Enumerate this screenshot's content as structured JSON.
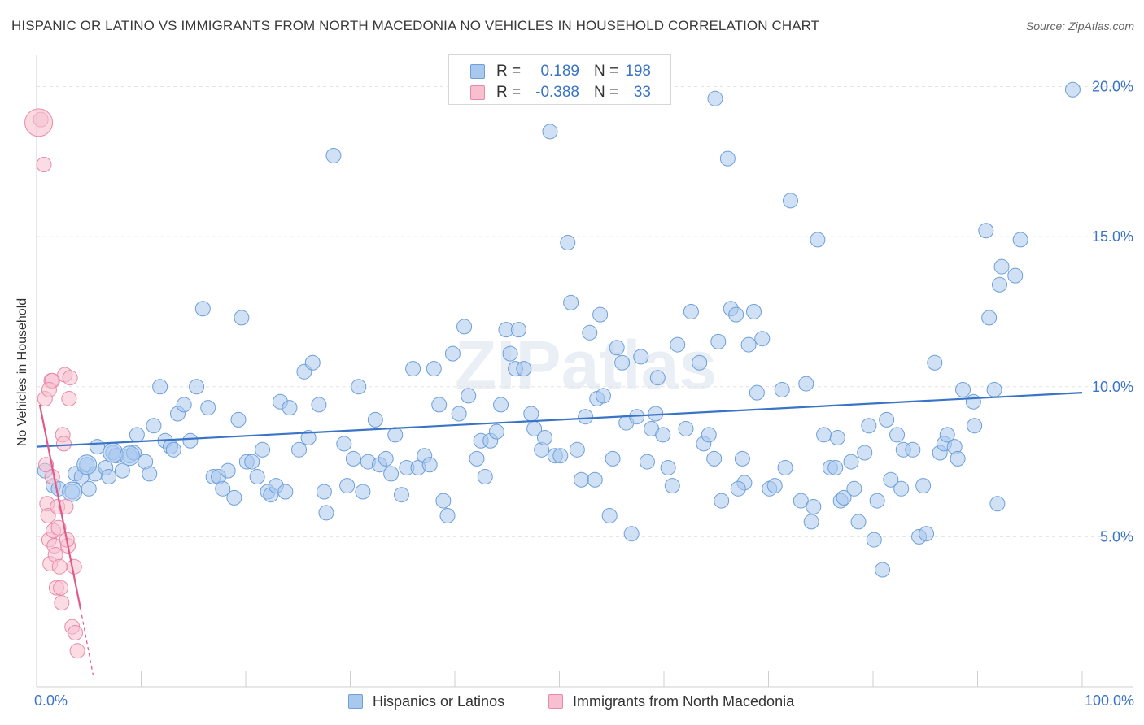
{
  "title": "HISPANIC OR LATINO VS IMMIGRANTS FROM NORTH MACEDONIA NO VEHICLES IN HOUSEHOLD CORRELATION CHART",
  "source": "Source: ZipAtlas.com",
  "watermark": "ZIPatlas",
  "legend_box": {
    "rows": [
      {
        "r_label": "R =",
        "r_value": "0.189",
        "n_label": "N =",
        "n_value": "198",
        "color": "#a9c8ee",
        "border": "#6e9fd8"
      },
      {
        "r_label": "R =",
        "r_value": "-0.388",
        "n_label": "N =",
        "n_value": "33",
        "color": "#f7bfcf",
        "border": "#e88aa7"
      }
    ]
  },
  "bottom_legend": [
    "Hispanics or Latinos",
    "Immigrants from North Macedonia"
  ],
  "chart_data": {
    "type": "scatter",
    "title": "HISPANIC OR LATINO VS IMMIGRANTS FROM NORTH MACEDONIA NO VEHICLES IN HOUSEHOLD CORRELATION CHART",
    "xlabel": "",
    "ylabel": "No Vehicles in Household",
    "xlim": [
      0,
      100
    ],
    "ylim": [
      0,
      20.8
    ],
    "x_tick_labels": [
      "0.0%",
      "100.0%"
    ],
    "y_ticks": [
      5,
      10,
      15,
      20
    ],
    "y_tick_labels": [
      "5.0%",
      "10.0%",
      "15.0%",
      "20.0%"
    ],
    "grid": true,
    "legend_position": "bottom",
    "series": [
      {
        "name": "Hispanics or Latinos",
        "color": "#a9c8ee",
        "stroke": "#6e9fd8",
        "line_color": "#3a74c6",
        "trend": {
          "x": [
            0,
            100
          ],
          "y": [
            8.0,
            9.8
          ]
        },
        "points": [
          [
            0.8,
            7.2
          ],
          [
            1.6,
            6.7
          ],
          [
            2.1,
            6.6
          ],
          [
            3.4,
            6.5
          ],
          [
            3.7,
            7.1
          ],
          [
            4.3,
            7.0
          ],
          [
            4.8,
            7.4
          ],
          [
            5.0,
            6.6
          ],
          [
            5.6,
            7.1
          ],
          [
            5.8,
            8.0
          ],
          [
            6.6,
            7.3
          ],
          [
            6.9,
            7.0
          ],
          [
            7.3,
            7.8
          ],
          [
            7.6,
            7.7
          ],
          [
            8.2,
            7.2
          ],
          [
            8.9,
            7.7
          ],
          [
            9.3,
            7.8
          ],
          [
            9.6,
            8.4
          ],
          [
            10.4,
            7.5
          ],
          [
            10.8,
            7.1
          ],
          [
            11.2,
            8.7
          ],
          [
            11.8,
            10.0
          ],
          [
            12.3,
            8.2
          ],
          [
            12.8,
            8.0
          ],
          [
            13.1,
            7.9
          ],
          [
            13.5,
            9.1
          ],
          [
            14.1,
            9.4
          ],
          [
            14.7,
            8.2
          ],
          [
            15.3,
            10.0
          ],
          [
            15.9,
            12.6
          ],
          [
            16.4,
            9.3
          ],
          [
            16.9,
            7.0
          ],
          [
            17.4,
            7.0
          ],
          [
            17.8,
            6.6
          ],
          [
            18.3,
            7.2
          ],
          [
            18.9,
            6.3
          ],
          [
            19.3,
            8.9
          ],
          [
            19.6,
            12.3
          ],
          [
            20.1,
            7.5
          ],
          [
            20.6,
            7.5
          ],
          [
            21.1,
            7.0
          ],
          [
            21.6,
            7.9
          ],
          [
            22.1,
            6.5
          ],
          [
            22.4,
            6.4
          ],
          [
            22.9,
            6.7
          ],
          [
            23.3,
            9.5
          ],
          [
            23.8,
            6.5
          ],
          [
            24.2,
            9.3
          ],
          [
            25.1,
            7.9
          ],
          [
            25.6,
            10.5
          ],
          [
            26.0,
            8.3
          ],
          [
            26.4,
            10.8
          ],
          [
            27.0,
            9.4
          ],
          [
            27.5,
            6.5
          ],
          [
            27.7,
            5.8
          ],
          [
            28.4,
            17.7
          ],
          [
            29.4,
            8.1
          ],
          [
            29.7,
            6.7
          ],
          [
            30.3,
            7.6
          ],
          [
            30.8,
            10.0
          ],
          [
            31.2,
            6.5
          ],
          [
            31.7,
            7.5
          ],
          [
            32.4,
            8.9
          ],
          [
            32.8,
            7.4
          ],
          [
            33.4,
            7.6
          ],
          [
            33.9,
            7.1
          ],
          [
            34.3,
            8.4
          ],
          [
            34.9,
            6.4
          ],
          [
            35.4,
            7.3
          ],
          [
            36.0,
            10.6
          ],
          [
            36.5,
            7.3
          ],
          [
            37.1,
            7.7
          ],
          [
            37.6,
            7.4
          ],
          [
            38.0,
            10.6
          ],
          [
            38.5,
            9.4
          ],
          [
            38.9,
            6.2
          ],
          [
            39.3,
            5.7
          ],
          [
            39.8,
            11.1
          ],
          [
            40.4,
            9.1
          ],
          [
            40.9,
            12.0
          ],
          [
            41.3,
            9.7
          ],
          [
            42.1,
            7.6
          ],
          [
            42.5,
            8.2
          ],
          [
            42.9,
            7.0
          ],
          [
            43.4,
            8.2
          ],
          [
            44.0,
            8.5
          ],
          [
            44.4,
            9.4
          ],
          [
            44.9,
            11.9
          ],
          [
            45.3,
            11.1
          ],
          [
            45.8,
            10.6
          ],
          [
            46.1,
            11.9
          ],
          [
            46.6,
            10.6
          ],
          [
            47.3,
            9.1
          ],
          [
            47.6,
            8.6
          ],
          [
            48.3,
            7.9
          ],
          [
            48.6,
            8.3
          ],
          [
            49.1,
            18.5
          ],
          [
            49.6,
            7.7
          ],
          [
            50.1,
            7.7
          ],
          [
            50.8,
            14.8
          ],
          [
            51.1,
            12.8
          ],
          [
            51.7,
            7.9
          ],
          [
            52.1,
            6.9
          ],
          [
            52.5,
            9.0
          ],
          [
            52.9,
            11.8
          ],
          [
            53.4,
            6.9
          ],
          [
            53.6,
            9.6
          ],
          [
            53.9,
            12.4
          ],
          [
            54.2,
            9.7
          ],
          [
            54.8,
            5.7
          ],
          [
            55.1,
            7.6
          ],
          [
            55.5,
            11.3
          ],
          [
            56.0,
            10.8
          ],
          [
            56.4,
            8.8
          ],
          [
            56.9,
            5.1
          ],
          [
            57.4,
            9.0
          ],
          [
            57.8,
            11.0
          ],
          [
            58.4,
            7.5
          ],
          [
            58.8,
            8.6
          ],
          [
            59.2,
            9.1
          ],
          [
            59.4,
            10.3
          ],
          [
            59.9,
            8.4
          ],
          [
            60.4,
            7.3
          ],
          [
            60.8,
            6.7
          ],
          [
            61.3,
            11.4
          ],
          [
            62.1,
            8.6
          ],
          [
            62.6,
            12.5
          ],
          [
            63.4,
            10.8
          ],
          [
            63.8,
            8.1
          ],
          [
            64.3,
            8.4
          ],
          [
            64.8,
            7.6
          ],
          [
            64.9,
            19.6
          ],
          [
            65.2,
            11.5
          ],
          [
            65.5,
            6.2
          ],
          [
            66.1,
            17.6
          ],
          [
            66.4,
            12.6
          ],
          [
            66.9,
            12.4
          ],
          [
            67.5,
            7.6
          ],
          [
            67.7,
            6.8
          ],
          [
            68.1,
            11.4
          ],
          [
            68.6,
            12.5
          ],
          [
            68.9,
            9.8
          ],
          [
            69.4,
            11.6
          ],
          [
            70.1,
            6.6
          ],
          [
            70.6,
            6.7
          ],
          [
            71.3,
            9.9
          ],
          [
            71.6,
            7.3
          ],
          [
            72.1,
            16.2
          ],
          [
            73.1,
            6.2
          ],
          [
            73.6,
            10.1
          ],
          [
            74.1,
            5.5
          ],
          [
            74.3,
            6.0
          ],
          [
            74.7,
            14.9
          ],
          [
            75.3,
            8.4
          ],
          [
            75.9,
            7.3
          ],
          [
            76.4,
            7.3
          ],
          [
            76.6,
            8.3
          ],
          [
            76.9,
            6.2
          ],
          [
            77.2,
            6.3
          ],
          [
            77.9,
            7.5
          ],
          [
            78.2,
            6.6
          ],
          [
            78.6,
            5.5
          ],
          [
            79.2,
            7.8
          ],
          [
            79.6,
            8.7
          ],
          [
            80.1,
            4.9
          ],
          [
            80.4,
            6.2
          ],
          [
            80.9,
            3.9
          ],
          [
            81.3,
            8.9
          ],
          [
            81.7,
            6.9
          ],
          [
            82.3,
            8.4
          ],
          [
            82.7,
            6.6
          ],
          [
            82.9,
            7.9
          ],
          [
            83.8,
            7.9
          ],
          [
            84.4,
            5.0
          ],
          [
            84.8,
            6.7
          ],
          [
            85.1,
            5.1
          ],
          [
            85.9,
            10.8
          ],
          [
            86.4,
            7.8
          ],
          [
            86.8,
            8.1
          ],
          [
            87.1,
            8.4
          ],
          [
            87.8,
            8.0
          ],
          [
            88.1,
            7.6
          ],
          [
            88.6,
            9.9
          ],
          [
            89.6,
            9.5
          ],
          [
            89.7,
            8.7
          ],
          [
            90.8,
            15.2
          ],
          [
            91.1,
            12.3
          ],
          [
            91.6,
            9.9
          ],
          [
            91.9,
            6.1
          ],
          [
            92.1,
            13.4
          ],
          [
            92.3,
            14.0
          ],
          [
            93.6,
            13.7
          ],
          [
            94.1,
            14.9
          ],
          [
            99.1,
            19.9
          ],
          [
            67.1,
            6.6
          ]
        ],
        "big_points": [
          [
            3.4,
            6.5
          ],
          [
            4.8,
            7.4
          ],
          [
            7.3,
            7.8
          ],
          [
            8.9,
            7.7
          ]
        ]
      },
      {
        "name": "Immigrants from North Macedonia",
        "color": "#f7bfcf",
        "stroke": "#e88aa7",
        "line_color": "#e05a8a",
        "trend": {
          "x": [
            0.3,
            4.2
          ],
          "y": [
            9.4,
            2.6
          ]
        },
        "trend_dashed": {
          "x": [
            4.2,
            5.4
          ],
          "y": [
            2.6,
            0.4
          ]
        },
        "points": [
          [
            0.4,
            18.9
          ],
          [
            0.7,
            17.4
          ],
          [
            0.8,
            9.6
          ],
          [
            0.9,
            7.4
          ],
          [
            1.0,
            6.1
          ],
          [
            1.1,
            5.7
          ],
          [
            1.2,
            4.9
          ],
          [
            1.3,
            4.1
          ],
          [
            1.4,
            10.2
          ],
          [
            1.5,
            7.0
          ],
          [
            1.6,
            5.2
          ],
          [
            1.7,
            4.7
          ],
          [
            1.8,
            4.4
          ],
          [
            1.9,
            3.3
          ],
          [
            2.0,
            6.0
          ],
          [
            2.1,
            5.3
          ],
          [
            2.2,
            4.0
          ],
          [
            2.3,
            3.3
          ],
          [
            2.4,
            2.8
          ],
          [
            2.5,
            8.4
          ],
          [
            2.6,
            8.1
          ],
          [
            2.7,
            10.4
          ],
          [
            2.8,
            6.0
          ],
          [
            3.0,
            4.7
          ],
          [
            3.1,
            9.6
          ],
          [
            3.2,
            10.3
          ],
          [
            3.4,
            2.0
          ],
          [
            3.6,
            4.0
          ],
          [
            3.7,
            1.8
          ],
          [
            3.9,
            1.2
          ],
          [
            1.5,
            10.2
          ],
          [
            2.9,
            4.9
          ],
          [
            1.2,
            9.9
          ]
        ],
        "big_points": [
          [
            0.2,
            18.8
          ]
        ]
      }
    ]
  }
}
